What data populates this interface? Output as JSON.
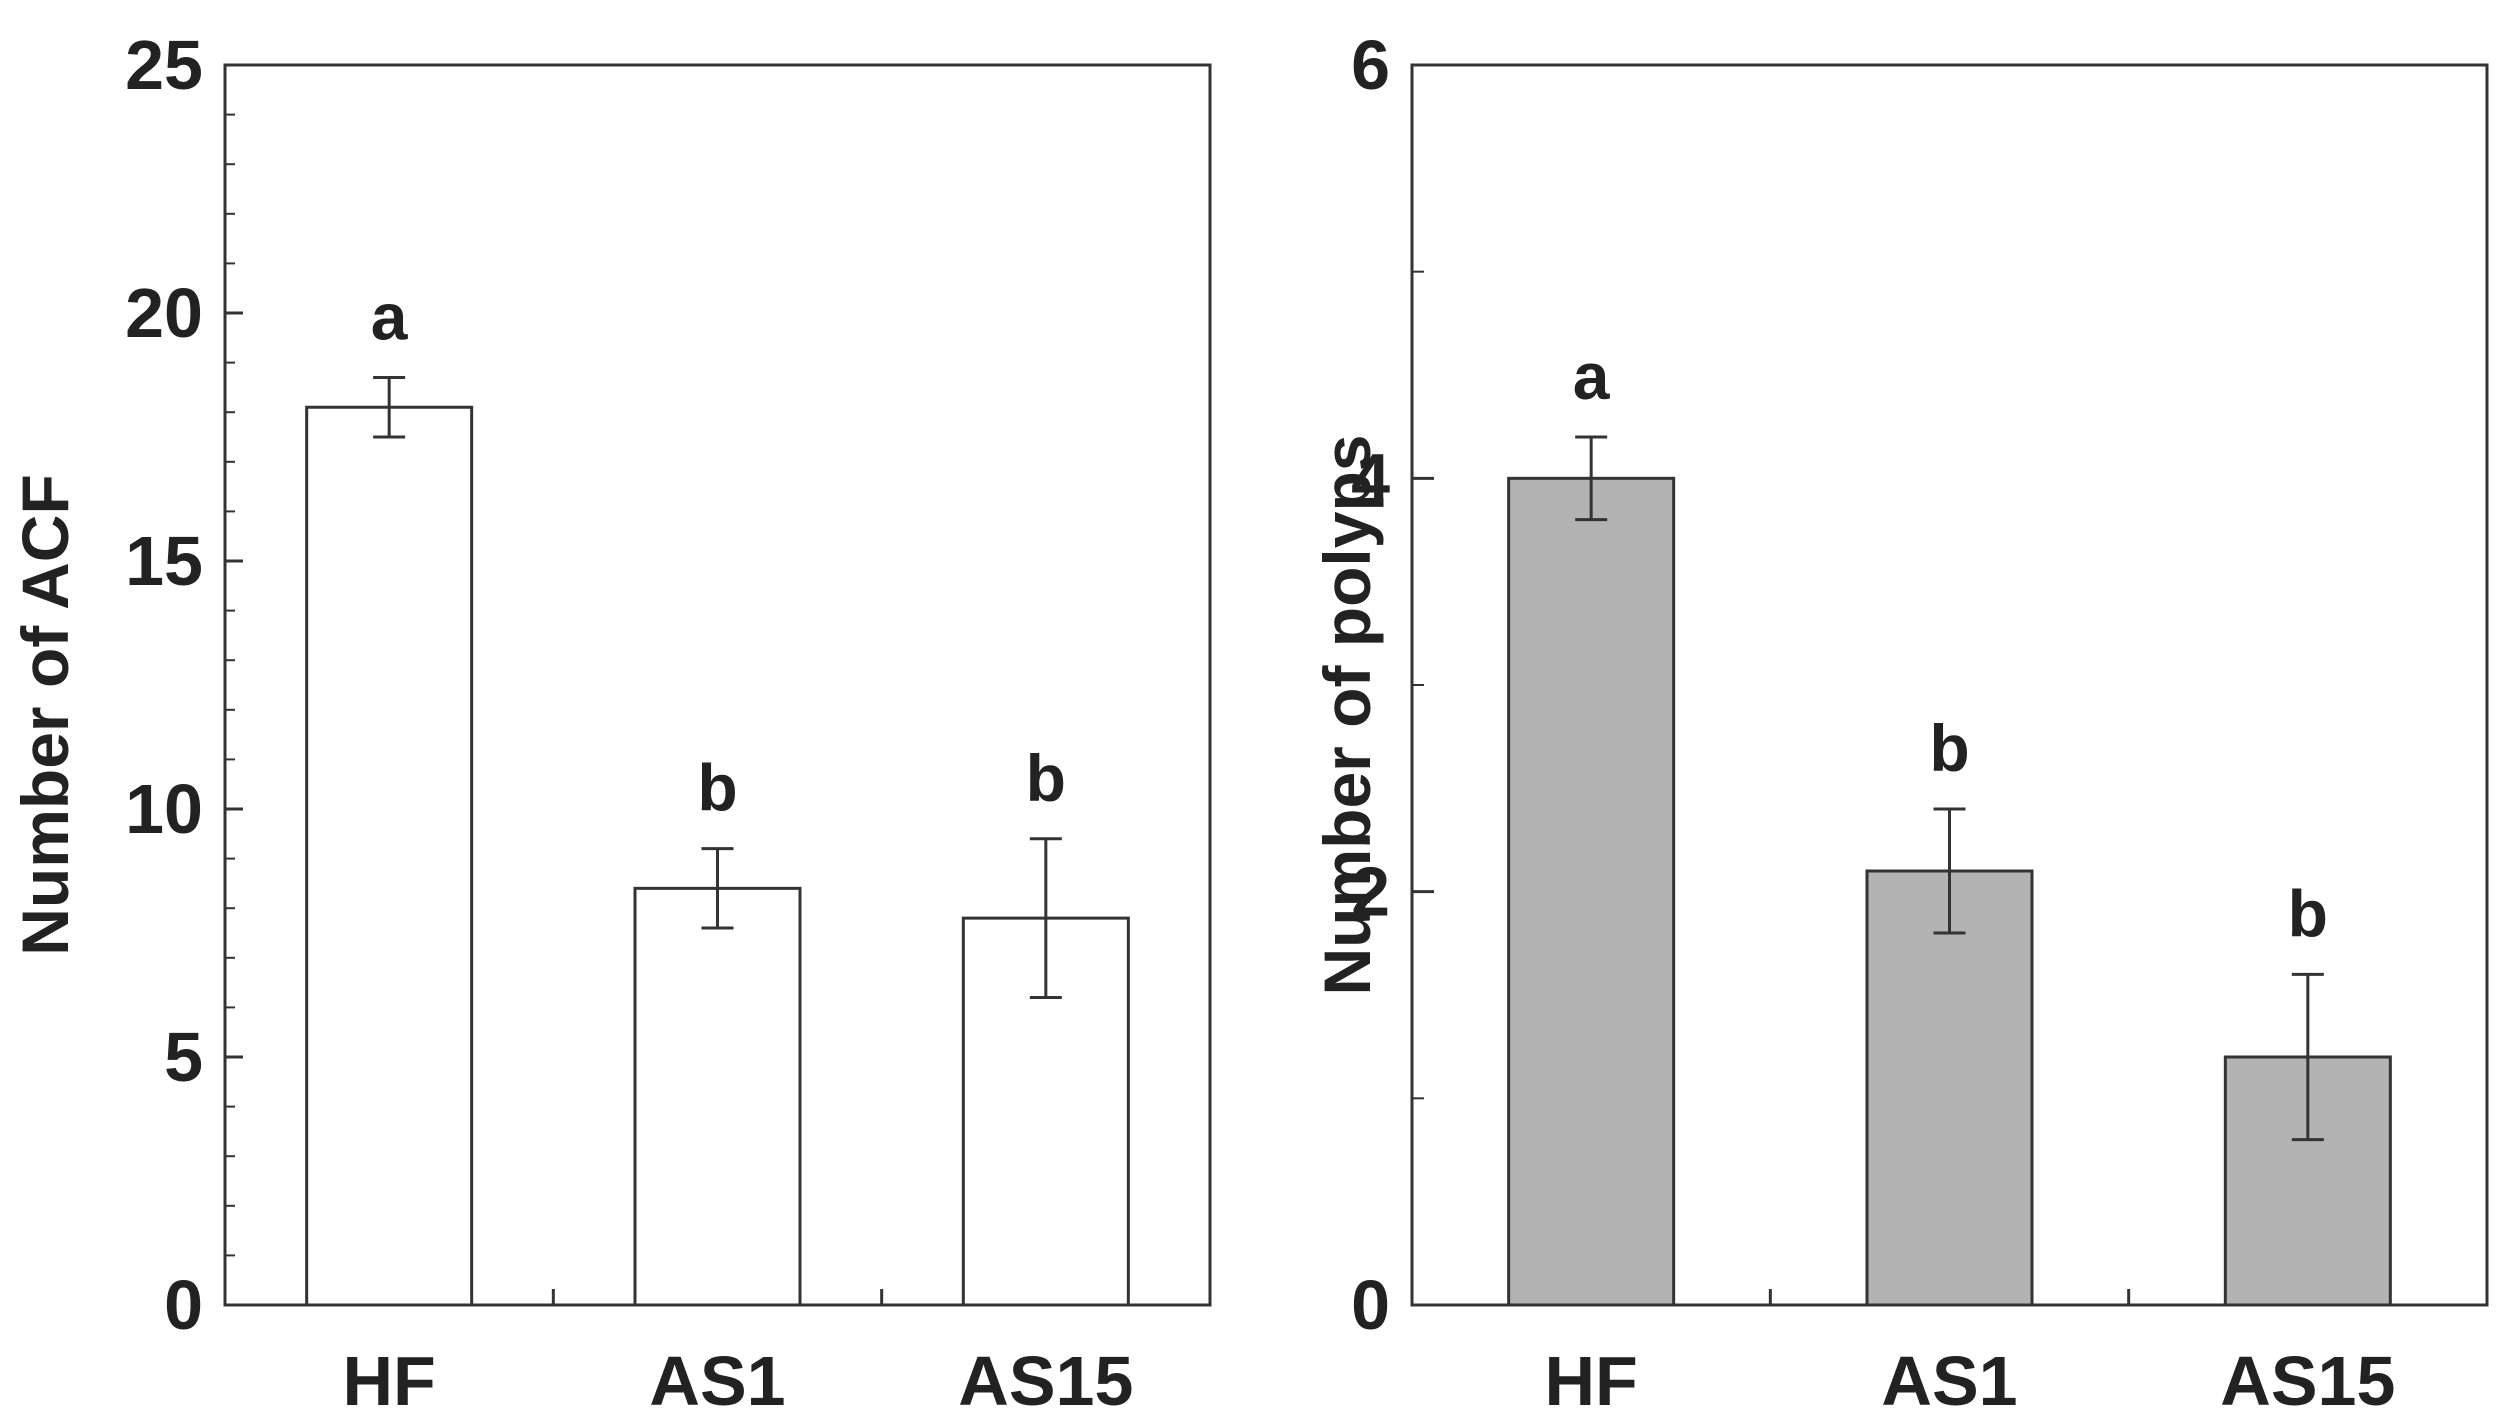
{
  "chart_data": [
    {
      "type": "bar",
      "title": "",
      "xlabel": "",
      "ylabel": "Number of ACF",
      "categories": [
        "HF",
        "AS1",
        "AS15"
      ],
      "values": [
        18.1,
        8.4,
        7.8
      ],
      "errors": [
        0.6,
        0.8,
        1.6
      ],
      "significance": [
        "a",
        "b",
        "b"
      ],
      "ylim": [
        0,
        25
      ],
      "yticks": [
        0,
        5,
        10,
        15,
        20,
        25
      ],
      "bar_color": "#ffffff",
      "grid": false
    },
    {
      "type": "bar",
      "title": "",
      "xlabel": "",
      "ylabel": "Number of polyps",
      "categories": [
        "HF",
        "AS1",
        "AS15"
      ],
      "values": [
        4.0,
        2.1,
        1.2
      ],
      "errors": [
        0.2,
        0.3,
        0.4
      ],
      "significance": [
        "a",
        "b",
        "b"
      ],
      "ylim": [
        0,
        6
      ],
      "yticks": [
        0,
        2,
        4,
        6
      ],
      "bar_color": "#b3b3b3",
      "grid": false
    }
  ]
}
